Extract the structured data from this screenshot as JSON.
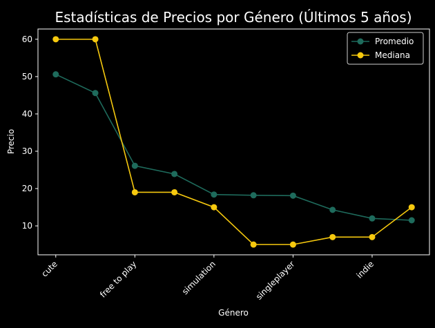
{
  "chart_data": {
    "type": "line",
    "title": "Estadísticas de Precios por Género (Últimos 5 años)",
    "xlabel": "Género",
    "ylabel": "Precio",
    "ylim": [
      2.25,
      62.75
    ],
    "yticks": [
      10,
      20,
      30,
      40,
      50,
      60
    ],
    "x_tick_labels": [
      "cute",
      "free to play",
      "simulation",
      "singleplayer",
      "indie"
    ],
    "x_tick_positions": [
      0,
      2,
      4,
      6,
      8
    ],
    "x_points": [
      0,
      1,
      2,
      3,
      4,
      5,
      6,
      7,
      8,
      9
    ],
    "grid": false,
    "legend_position": "top-right",
    "series": [
      {
        "name": "Promedio",
        "color": "#1e6b5c",
        "values": [
          50.6,
          45.6,
          26.1,
          23.9,
          18.4,
          18.2,
          18.1,
          14.3,
          12.0,
          11.5
        ]
      },
      {
        "name": "Mediana",
        "color": "#f6c90e",
        "values": [
          60.0,
          60.0,
          19.0,
          19.0,
          15.0,
          5.0,
          5.0,
          7.0,
          7.0,
          15.0
        ]
      }
    ]
  }
}
